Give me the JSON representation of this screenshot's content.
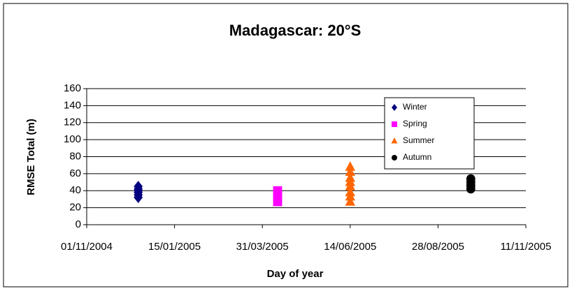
{
  "chart_data": {
    "type": "scatter",
    "title": "Madagascar: 20°S",
    "x_label": "Day of year",
    "y_label": "RMSE  Total (m)",
    "xlim": [
      "2004-11-01",
      "2005-11-11"
    ],
    "xticks": [
      {
        "value": "2004-11-01",
        "label": "01/11/2004"
      },
      {
        "value": "2005-01-15",
        "label": "15/01/2005"
      },
      {
        "value": "2005-03-31",
        "label": "31/03/2005"
      },
      {
        "value": "2005-06-14",
        "label": "14/06/2005"
      },
      {
        "value": "2005-08-28",
        "label": "28/08/2005"
      },
      {
        "value": "2005-11-11",
        "label": "11/11/2005"
      }
    ],
    "ylim": [
      0,
      160
    ],
    "yticks": [
      0,
      20,
      40,
      60,
      80,
      100,
      120,
      140,
      160
    ],
    "grid": true,
    "legend": "top-right",
    "series": [
      {
        "name": "Winter",
        "color": "#000080",
        "marker": "diamond",
        "x": [
          "2004-12-15",
          "2004-12-15",
          "2004-12-15",
          "2004-12-15",
          "2004-12-15",
          "2004-12-15"
        ],
        "values": [
          32,
          35,
          38,
          40,
          42,
          45
        ]
      },
      {
        "name": "Spring",
        "color": "#FF00FF",
        "marker": "square",
        "x": [
          "2005-04-13",
          "2005-04-13",
          "2005-04-13",
          "2005-04-13",
          "2005-04-13"
        ],
        "values": [
          27,
          30,
          33,
          36,
          40
        ]
      },
      {
        "name": "Summer",
        "color": "#FF6600",
        "marker": "triangle",
        "x": [
          "2005-06-14",
          "2005-06-14",
          "2005-06-14",
          "2005-06-14",
          "2005-06-14",
          "2005-06-14",
          "2005-06-14",
          "2005-06-14"
        ],
        "values": [
          27,
          33,
          38,
          45,
          50,
          55,
          62,
          68
        ]
      },
      {
        "name": "Autumn",
        "color": "#000000",
        "marker": "circle",
        "x": [
          "2005-09-25",
          "2005-09-25",
          "2005-09-25",
          "2005-09-25"
        ],
        "values": [
          42,
          46,
          50,
          54
        ]
      }
    ]
  }
}
